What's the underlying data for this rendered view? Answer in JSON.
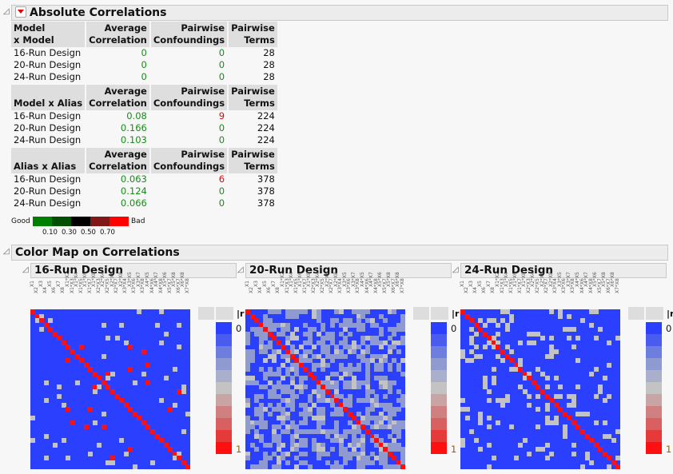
{
  "section1": {
    "title": "Absolute Correlations",
    "tables": [
      {
        "headers": [
          "Model\nx Model",
          "Average\nCorrelation",
          "Pairwise\nConfoundings",
          "Pairwise\nTerms"
        ],
        "rows": [
          [
            "16-Run Design",
            "0",
            "0",
            "28"
          ],
          [
            "20-Run Design",
            "0",
            "0",
            "28"
          ],
          [
            "24-Run Design",
            "0",
            "0",
            "28"
          ]
        ]
      },
      {
        "headers": [
          "Model x Alias",
          "Average\nCorrelation",
          "Pairwise\nConfoundings",
          "Pairwise\nTerms"
        ],
        "rows": [
          [
            "16-Run Design",
            "0.08",
            "9",
            "224"
          ],
          [
            "20-Run Design",
            "0.166",
            "0",
            "224"
          ],
          [
            "24-Run Design",
            "0.103",
            "0",
            "224"
          ]
        ]
      },
      {
        "headers": [
          "Alias x Alias",
          "Average\nCorrelation",
          "Pairwise\nConfoundings",
          "Pairwise\nTerms"
        ],
        "rows": [
          [
            "16-Run Design",
            "0.063",
            "6",
            "378"
          ],
          [
            "20-Run Design",
            "0.124",
            "0",
            "378"
          ],
          [
            "24-Run Design",
            "0.066",
            "0",
            "378"
          ]
        ]
      }
    ],
    "legend": {
      "good": "Good",
      "bad": "Bad",
      "ticks": [
        "0.10",
        "0.30",
        "0.50",
        "0.70"
      ],
      "colors": [
        "#008000",
        "#005000",
        "#000000",
        "#801818",
        "#ff0000"
      ]
    }
  },
  "section2": {
    "title": "Color Map on Correlations",
    "panels": [
      {
        "title": "16-Run Design",
        "nonzero_density": 0.08
      },
      {
        "title": "20-Run Design",
        "nonzero_density": 0.5
      },
      {
        "title": "24-Run Design",
        "nonzero_density": 0.15
      }
    ],
    "scale": {
      "header": "|r|",
      "min": "0",
      "max": "1",
      "colors": [
        "#2b3fff",
        "#4a5cf0",
        "#6e7ede",
        "#8f9ad0",
        "#aab0cc",
        "#c3c3c3",
        "#c8a4a4",
        "#d08080",
        "#d86060",
        "#e63a3a",
        "#ff1010"
      ]
    },
    "terms": [
      "X1",
      "X2",
      "X3",
      "X4",
      "X5",
      "X6",
      "X7",
      "X8",
      "X1*X2",
      "X1*X3",
      "X1*X4",
      "X1*X5",
      "X1*X6",
      "X1*X7",
      "X1*X8",
      "X2*X3",
      "X2*X4",
      "X2*X5",
      "X2*X6",
      "X2*X7",
      "X2*X8",
      "X3*X4",
      "X3*X5",
      "X3*X6",
      "X3*X7",
      "X3*X8",
      "X4*X5",
      "X4*X6",
      "X4*X7",
      "X4*X8",
      "X5*X6",
      "X5*X7",
      "X5*X8",
      "X6*X7",
      "X6*X8",
      "X7*X8"
    ]
  }
}
